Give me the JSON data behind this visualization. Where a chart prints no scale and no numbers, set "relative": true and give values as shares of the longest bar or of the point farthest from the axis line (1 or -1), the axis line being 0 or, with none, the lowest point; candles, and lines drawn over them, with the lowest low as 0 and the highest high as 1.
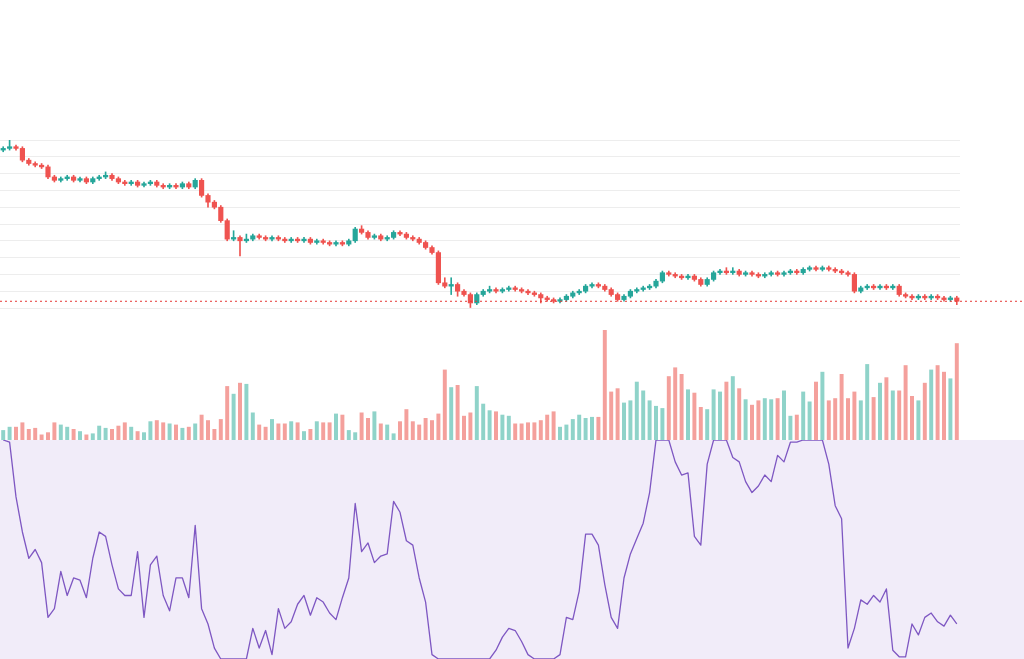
{
  "chart_data": [
    {
      "type": "candlestick",
      "relative": true,
      "grid": "y",
      "categories": [
        null,
        null,
        null,
        null,
        null,
        null,
        null,
        null,
        null,
        null,
        null,
        null,
        null,
        null,
        null,
        null,
        null,
        null,
        null,
        null,
        null,
        null,
        null,
        null,
        null,
        null,
        null,
        null,
        null,
        null,
        null,
        null,
        null,
        null,
        null,
        null,
        null,
        null,
        null,
        null,
        null,
        null,
        null,
        null,
        null,
        null,
        null,
        null,
        null,
        null,
        null,
        null,
        null,
        null,
        null,
        null,
        null,
        null,
        null,
        null,
        null,
        null,
        null,
        null,
        null,
        null,
        null,
        null,
        null,
        null,
        null,
        null,
        null,
        null,
        null,
        null,
        null,
        null,
        null,
        null,
        null,
        null,
        null,
        null,
        null,
        null,
        null,
        null,
        null,
        null,
        null,
        null,
        null,
        null,
        null,
        null,
        null,
        null,
        null,
        null,
        null,
        null,
        null,
        null,
        null,
        null,
        null,
        null,
        null,
        null,
        null,
        null,
        null,
        null,
        null,
        null,
        null,
        null,
        null,
        null,
        null,
        null,
        null,
        null,
        null,
        null,
        null,
        null,
        null,
        null,
        null,
        null,
        null,
        null,
        null,
        null,
        null,
        null,
        null,
        null,
        null,
        null,
        null,
        null,
        null,
        null,
        null,
        null,
        null,
        null
      ],
      "ohlc": [
        [
          0.94,
          0.96,
          0.93,
          0.95
        ],
        [
          0.95,
          1,
          0.94,
          0.96
        ],
        [
          0.96,
          0.97,
          0.94,
          0.95
        ],
        [
          0.95,
          0.96,
          0.87,
          0.88
        ],
        [
          0.88,
          0.89,
          0.85,
          0.86
        ],
        [
          0.86,
          0.87,
          0.84,
          0.85
        ],
        [
          0.85,
          0.86,
          0.83,
          0.84
        ],
        [
          0.84,
          0.85,
          0.77,
          0.78
        ],
        [
          0.78,
          0.79,
          0.75,
          0.76
        ],
        [
          0.76,
          0.78,
          0.75,
          0.77
        ],
        [
          0.77,
          0.79,
          0.76,
          0.78
        ],
        [
          0.78,
          0.79,
          0.75,
          0.76
        ],
        [
          0.76,
          0.78,
          0.75,
          0.77
        ],
        [
          0.77,
          0.78,
          0.74,
          0.75
        ],
        [
          0.75,
          0.78,
          0.74,
          0.77
        ],
        [
          0.77,
          0.79,
          0.76,
          0.78
        ],
        [
          0.78,
          0.81,
          0.77,
          0.79
        ],
        [
          0.79,
          0.8,
          0.76,
          0.77
        ],
        [
          0.77,
          0.78,
          0.74,
          0.75
        ],
        [
          0.75,
          0.76,
          0.73,
          0.74
        ],
        [
          0.74,
          0.76,
          0.73,
          0.75
        ],
        [
          0.75,
          0.76,
          0.72,
          0.73
        ],
        [
          0.73,
          0.75,
          0.72,
          0.74
        ],
        [
          0.74,
          0.76,
          0.73,
          0.75
        ],
        [
          0.75,
          0.76,
          0.72,
          0.73
        ],
        [
          0.73,
          0.74,
          0.71,
          0.72
        ],
        [
          0.72,
          0.74,
          0.71,
          0.73
        ],
        [
          0.73,
          0.74,
          0.71,
          0.72
        ],
        [
          0.72,
          0.75,
          0.71,
          0.74
        ],
        [
          0.74,
          0.75,
          0.71,
          0.72
        ],
        [
          0.72,
          0.77,
          0.71,
          0.76
        ],
        [
          0.76,
          0.77,
          0.66,
          0.67
        ],
        [
          0.67,
          0.68,
          0.6,
          0.63
        ],
        [
          0.63,
          0.64,
          0.59,
          0.6
        ],
        [
          0.6,
          0.61,
          0.51,
          0.52
        ],
        [
          0.52,
          0.53,
          0.4,
          0.41
        ],
        [
          0.41,
          0.46,
          0.4,
          0.42
        ],
        [
          0.42,
          0.43,
          0.31,
          0.4
        ],
        [
          0.4,
          0.44,
          0.39,
          0.41
        ],
        [
          0.41,
          0.44,
          0.4,
          0.43
        ],
        [
          0.43,
          0.44,
          0.41,
          0.42
        ],
        [
          0.42,
          0.43,
          0.4,
          0.41
        ],
        [
          0.41,
          0.43,
          0.4,
          0.42
        ],
        [
          0.42,
          0.43,
          0.4,
          0.41
        ],
        [
          0.41,
          0.42,
          0.39,
          0.4
        ],
        [
          0.4,
          0.42,
          0.39,
          0.41
        ],
        [
          0.41,
          0.42,
          0.39,
          0.4
        ],
        [
          0.4,
          0.42,
          0.39,
          0.41
        ],
        [
          0.41,
          0.42,
          0.38,
          0.39
        ],
        [
          0.39,
          0.41,
          0.38,
          0.4
        ],
        [
          0.4,
          0.41,
          0.38,
          0.39
        ],
        [
          0.39,
          0.4,
          0.37,
          0.38
        ],
        [
          0.38,
          0.4,
          0.37,
          0.39
        ],
        [
          0.39,
          0.4,
          0.37,
          0.38
        ],
        [
          0.38,
          0.41,
          0.37,
          0.4
        ],
        [
          0.4,
          0.48,
          0.39,
          0.47
        ],
        [
          0.47,
          0.49,
          0.44,
          0.45
        ],
        [
          0.45,
          0.46,
          0.41,
          0.42
        ],
        [
          0.42,
          0.44,
          0.41,
          0.43
        ],
        [
          0.43,
          0.44,
          0.4,
          0.41
        ],
        [
          0.41,
          0.43,
          0.4,
          0.42
        ],
        [
          0.42,
          0.46,
          0.41,
          0.45
        ],
        [
          0.45,
          0.46,
          0.43,
          0.44
        ],
        [
          0.44,
          0.45,
          0.41,
          0.42
        ],
        [
          0.42,
          0.43,
          0.4,
          0.41
        ],
        [
          0.41,
          0.42,
          0.38,
          0.39
        ],
        [
          0.39,
          0.4,
          0.35,
          0.36
        ],
        [
          0.36,
          0.37,
          0.32,
          0.33
        ],
        [
          0.33,
          0.34,
          0.14,
          0.15
        ],
        [
          0.15,
          0.18,
          0.12,
          0.13
        ],
        [
          0.13,
          0.18,
          0.08,
          0.14
        ],
        [
          0.14,
          0.15,
          0.07,
          0.1
        ],
        [
          0.1,
          0.11,
          0.07,
          0.08
        ],
        [
          0.08,
          0.09,
          0,
          0.03
        ],
        [
          0.03,
          0.09,
          0.02,
          0.08
        ],
        [
          0.08,
          0.11,
          0.07,
          0.1
        ],
        [
          0.1,
          0.13,
          0.09,
          0.11
        ],
        [
          0.11,
          0.12,
          0.09,
          0.1
        ],
        [
          0.1,
          0.12,
          0.09,
          0.11
        ],
        [
          0.11,
          0.13,
          0.1,
          0.12
        ],
        [
          0.12,
          0.13,
          0.1,
          0.11
        ],
        [
          0.11,
          0.12,
          0.09,
          0.1
        ],
        [
          0.1,
          0.11,
          0.08,
          0.09
        ],
        [
          0.09,
          0.1,
          0.07,
          0.08
        ],
        [
          0.08,
          0.09,
          0.03,
          0.06
        ],
        [
          0.06,
          0.07,
          0.04,
          0.05
        ],
        [
          0.05,
          0.06,
          0.03,
          0.04
        ],
        [
          0.04,
          0.06,
          0.03,
          0.05
        ],
        [
          0.05,
          0.08,
          0.04,
          0.07
        ],
        [
          0.07,
          0.1,
          0.06,
          0.09
        ],
        [
          0.09,
          0.11,
          0.08,
          0.1
        ],
        [
          0.1,
          0.14,
          0.09,
          0.13
        ],
        [
          0.13,
          0.15,
          0.12,
          0.14
        ],
        [
          0.14,
          0.15,
          0.12,
          0.13
        ],
        [
          0.13,
          0.14,
          0.1,
          0.11
        ],
        [
          0.11,
          0.12,
          0.07,
          0.08
        ],
        [
          0.08,
          0.09,
          0.04,
          0.05
        ],
        [
          0.05,
          0.08,
          0.04,
          0.07
        ],
        [
          0.07,
          0.11,
          0.06,
          0.1
        ],
        [
          0.1,
          0.12,
          0.09,
          0.11
        ],
        [
          0.11,
          0.13,
          0.1,
          0.12
        ],
        [
          0.12,
          0.14,
          0.11,
          0.13
        ],
        [
          0.13,
          0.17,
          0.12,
          0.16
        ],
        [
          0.16,
          0.22,
          0.15,
          0.21
        ],
        [
          0.21,
          0.22,
          0.19,
          0.2
        ],
        [
          0.2,
          0.21,
          0.18,
          0.19
        ],
        [
          0.19,
          0.2,
          0.17,
          0.18
        ],
        [
          0.18,
          0.2,
          0.17,
          0.19
        ],
        [
          0.19,
          0.2,
          0.16,
          0.17
        ],
        [
          0.17,
          0.18,
          0.13,
          0.14
        ],
        [
          0.14,
          0.18,
          0.13,
          0.17
        ],
        [
          0.17,
          0.22,
          0.16,
          0.21
        ],
        [
          0.21,
          0.23,
          0.2,
          0.22
        ],
        [
          0.22,
          0.24,
          0.2,
          0.21
        ],
        [
          0.21,
          0.24,
          0.2,
          0.22
        ],
        [
          0.22,
          0.23,
          0.19,
          0.2
        ],
        [
          0.2,
          0.22,
          0.19,
          0.21
        ],
        [
          0.21,
          0.22,
          0.19,
          0.2
        ],
        [
          0.2,
          0.21,
          0.18,
          0.19
        ],
        [
          0.19,
          0.21,
          0.18,
          0.2
        ],
        [
          0.2,
          0.22,
          0.19,
          0.21
        ],
        [
          0.21,
          0.22,
          0.19,
          0.2
        ],
        [
          0.2,
          0.22,
          0.19,
          0.21
        ],
        [
          0.21,
          0.23,
          0.2,
          0.22
        ],
        [
          0.22,
          0.23,
          0.2,
          0.21
        ],
        [
          0.21,
          0.24,
          0.2,
          0.23
        ],
        [
          0.23,
          0.25,
          0.22,
          0.24
        ],
        [
          0.24,
          0.25,
          0.22,
          0.23
        ],
        [
          0.23,
          0.25,
          0.22,
          0.24
        ],
        [
          0.24,
          0.25,
          0.22,
          0.23
        ],
        [
          0.23,
          0.24,
          0.21,
          0.22
        ],
        [
          0.22,
          0.23,
          0.2,
          0.21
        ],
        [
          0.21,
          0.22,
          0.19,
          0.2
        ],
        [
          0.2,
          0.21,
          0.09,
          0.1
        ],
        [
          0.1,
          0.13,
          0.09,
          0.12
        ],
        [
          0.12,
          0.14,
          0.11,
          0.13
        ],
        [
          0.13,
          0.14,
          0.11,
          0.12
        ],
        [
          0.12,
          0.14,
          0.11,
          0.13
        ],
        [
          0.13,
          0.14,
          0.11,
          0.12
        ],
        [
          0.12,
          0.14,
          0.11,
          0.13
        ],
        [
          0.13,
          0.14,
          0.07,
          0.08
        ],
        [
          0.08,
          0.09,
          0.06,
          0.07
        ],
        [
          0.07,
          0.08,
          0.05,
          0.06
        ],
        [
          0.06,
          0.08,
          0.05,
          0.07
        ],
        [
          0.07,
          0.08,
          0.05,
          0.06
        ],
        [
          0.06,
          0.08,
          0.05,
          0.07
        ],
        [
          0.07,
          0.08,
          0.05,
          0.06
        ],
        [
          0.06,
          0.07,
          0.04,
          0.05
        ],
        [
          0.05,
          0.07,
          0.04,
          0.06
        ],
        [
          0.06,
          0.07,
          0.02,
          0.04
        ]
      ],
      "ref_lines": [
        {
          "axis": "y",
          "value": 0.04,
          "color": "#e53935",
          "line_style": "dotted"
        }
      ]
    },
    {
      "type": "bar",
      "relative": true,
      "categories": [
        null,
        null,
        null,
        null,
        null,
        null,
        null,
        null,
        null,
        null,
        null,
        null,
        null,
        null,
        null,
        null,
        null,
        null,
        null,
        null,
        null,
        null,
        null,
        null,
        null,
        null,
        null,
        null,
        null,
        null,
        null,
        null,
        null,
        null,
        null,
        null,
        null,
        null,
        null,
        null,
        null,
        null,
        null,
        null,
        null,
        null,
        null,
        null,
        null,
        null,
        null,
        null,
        null,
        null,
        null,
        null,
        null,
        null,
        null,
        null,
        null,
        null,
        null,
        null,
        null,
        null,
        null,
        null,
        null,
        null,
        null,
        null,
        null,
        null,
        null,
        null,
        null,
        null,
        null,
        null,
        null,
        null,
        null,
        null,
        null,
        null,
        null,
        null,
        null,
        null,
        null,
        null,
        null,
        null,
        null,
        null,
        null,
        null,
        null,
        null,
        null,
        null,
        null,
        null,
        null,
        null,
        null,
        null,
        null,
        null,
        null,
        null,
        null,
        null,
        null,
        null,
        null,
        null,
        null,
        null,
        null,
        null,
        null,
        null,
        null,
        null,
        null,
        null,
        null,
        null,
        null,
        null,
        null,
        null,
        null,
        null,
        null,
        null,
        null,
        null,
        null,
        null,
        null,
        null,
        null,
        null,
        null,
        null,
        null,
        null
      ],
      "values": [
        0.09,
        0.12,
        0.12,
        0.16,
        0.1,
        0.11,
        0.05,
        0.07,
        0.16,
        0.14,
        0.12,
        0.1,
        0.08,
        0.05,
        0.06,
        0.13,
        0.11,
        0.1,
        0.13,
        0.16,
        0.12,
        0.08,
        0.07,
        0.17,
        0.18,
        0.16,
        0.15,
        0.14,
        0.11,
        0.12,
        0.15,
        0.23,
        0.18,
        0.1,
        0.19,
        0.49,
        0.42,
        0.52,
        0.51,
        0.25,
        0.14,
        0.12,
        0.19,
        0.15,
        0.15,
        0.17,
        0.16,
        0.08,
        0.1,
        0.17,
        0.16,
        0.16,
        0.24,
        0.23,
        0.09,
        0.07,
        0.25,
        0.2,
        0.26,
        0.15,
        0.14,
        0.06,
        0.17,
        0.28,
        0.17,
        0.14,
        0.2,
        0.18,
        0.24,
        0.64,
        0.48,
        0.5,
        0.22,
        0.25,
        0.49,
        0.33,
        0.27,
        0.26,
        0.23,
        0.22,
        0.15,
        0.15,
        0.16,
        0.16,
        0.18,
        0.23,
        0.26,
        0.12,
        0.14,
        0.19,
        0.23,
        0.2,
        0.21,
        0.21,
        1,
        0.44,
        0.47,
        0.34,
        0.36,
        0.53,
        0.45,
        0.36,
        0.31,
        0.29,
        0.58,
        0.66,
        0.6,
        0.46,
        0.43,
        0.3,
        0.28,
        0.46,
        0.44,
        0.53,
        0.58,
        0.47,
        0.37,
        0.32,
        0.36,
        0.38,
        0.37,
        0.38,
        0.45,
        0.22,
        0.23,
        0.44,
        0.35,
        0.53,
        0.62,
        0.36,
        0.38,
        0.6,
        0.38,
        0.44,
        0.36,
        0.69,
        0.39,
        0.52,
        0.57,
        0.45,
        0.45,
        0.68,
        0.4,
        0.36,
        0.52,
        0.64,
        0.68,
        0.62,
        0.56,
        0.88
      ],
      "colors": [
        "#8fd3c9",
        "#8fd3c9",
        "#f4a09c",
        "#f4a09c",
        "#f4a09c",
        "#f4a09c",
        "#f4a09c",
        "#f4a09c",
        "#f4a09c",
        "#8fd3c9",
        "#8fd3c9",
        "#f4a09c",
        "#8fd3c9",
        "#f4a09c",
        "#8fd3c9",
        "#8fd3c9",
        "#8fd3c9",
        "#f4a09c",
        "#f4a09c",
        "#f4a09c",
        "#8fd3c9",
        "#f4a09c",
        "#8fd3c9",
        "#8fd3c9",
        "#f4a09c",
        "#f4a09c",
        "#8fd3c9",
        "#f4a09c",
        "#8fd3c9",
        "#f4a09c",
        "#8fd3c9",
        "#f4a09c",
        "#f4a09c",
        "#f4a09c",
        "#f4a09c",
        "#f4a09c",
        "#8fd3c9",
        "#f4a09c",
        "#8fd3c9",
        "#8fd3c9",
        "#f4a09c",
        "#f4a09c",
        "#8fd3c9",
        "#f4a09c",
        "#f4a09c",
        "#8fd3c9",
        "#f4a09c",
        "#8fd3c9",
        "#f4a09c",
        "#8fd3c9",
        "#f4a09c",
        "#f4a09c",
        "#8fd3c9",
        "#f4a09c",
        "#8fd3c9",
        "#8fd3c9",
        "#f4a09c",
        "#f4a09c",
        "#8fd3c9",
        "#f4a09c",
        "#8fd3c9",
        "#8fd3c9",
        "#f4a09c",
        "#f4a09c",
        "#f4a09c",
        "#f4a09c",
        "#f4a09c",
        "#f4a09c",
        "#f4a09c",
        "#f4a09c",
        "#8fd3c9",
        "#f4a09c",
        "#f4a09c",
        "#f4a09c",
        "#8fd3c9",
        "#8fd3c9",
        "#8fd3c9",
        "#f4a09c",
        "#8fd3c9",
        "#8fd3c9",
        "#f4a09c",
        "#f4a09c",
        "#f4a09c",
        "#f4a09c",
        "#f4a09c",
        "#f4a09c",
        "#f4a09c",
        "#8fd3c9",
        "#8fd3c9",
        "#8fd3c9",
        "#8fd3c9",
        "#8fd3c9",
        "#8fd3c9",
        "#f4a09c",
        "#f4a09c",
        "#f4a09c",
        "#f4a09c",
        "#8fd3c9",
        "#8fd3c9",
        "#8fd3c9",
        "#8fd3c9",
        "#8fd3c9",
        "#8fd3c9",
        "#8fd3c9",
        "#f4a09c",
        "#f4a09c",
        "#f4a09c",
        "#8fd3c9",
        "#f4a09c",
        "#f4a09c",
        "#8fd3c9",
        "#8fd3c9",
        "#8fd3c9",
        "#f4a09c",
        "#8fd3c9",
        "#f4a09c",
        "#8fd3c9",
        "#f4a09c",
        "#f4a09c",
        "#8fd3c9",
        "#8fd3c9",
        "#f4a09c",
        "#8fd3c9",
        "#8fd3c9",
        "#f4a09c",
        "#8fd3c9",
        "#8fd3c9",
        "#f4a09c",
        "#8fd3c9",
        "#f4a09c",
        "#f4a09c",
        "#f4a09c",
        "#f4a09c",
        "#f4a09c",
        "#8fd3c9",
        "#8fd3c9",
        "#f4a09c",
        "#8fd3c9",
        "#f4a09c",
        "#8fd3c9",
        "#f4a09c",
        "#f4a09c",
        "#f4a09c",
        "#8fd3c9",
        "#f4a09c",
        "#8fd3c9",
        "#f4a09c",
        "#f4a09c",
        "#8fd3c9",
        "#f4a09c"
      ]
    },
    {
      "type": "line",
      "relative": true,
      "color": "#7e57c2",
      "categories": [
        null,
        null,
        null,
        null,
        null,
        null,
        null,
        null,
        null,
        null,
        null,
        null,
        null,
        null,
        null,
        null,
        null,
        null,
        null,
        null,
        null,
        null,
        null,
        null,
        null,
        null,
        null,
        null,
        null,
        null,
        null,
        null,
        null,
        null,
        null,
        null,
        null,
        null,
        null,
        null,
        null,
        null,
        null,
        null,
        null,
        null,
        null,
        null,
        null,
        null,
        null,
        null,
        null,
        null,
        null,
        null,
        null,
        null,
        null,
        null,
        null,
        null,
        null,
        null,
        null,
        null,
        null,
        null,
        null,
        null,
        null,
        null,
        null,
        null,
        null,
        null,
        null,
        null,
        null,
        null,
        null,
        null,
        null,
        null,
        null,
        null,
        null,
        null,
        null,
        null,
        null,
        null,
        null,
        null,
        null,
        null,
        null,
        null,
        null,
        null,
        null,
        null,
        null,
        null,
        null,
        null,
        null,
        null,
        null,
        null,
        null,
        null,
        null,
        null,
        null,
        null,
        null,
        null,
        null,
        null,
        null,
        null,
        null,
        null,
        null,
        null,
        null,
        null,
        null,
        null,
        null,
        null,
        null,
        null,
        null,
        null,
        null,
        null,
        null,
        null,
        null,
        null,
        null,
        null,
        null,
        null,
        null,
        null,
        null,
        null
      ],
      "values": [
        1,
        0.99,
        0.74,
        0.58,
        0.46,
        0.5,
        0.44,
        0.19,
        0.23,
        0.4,
        0.29,
        0.37,
        0.36,
        0.28,
        0.46,
        0.58,
        0.56,
        0.43,
        0.32,
        0.29,
        0.29,
        0.49,
        0.19,
        0.43,
        0.47,
        0.29,
        0.22,
        0.37,
        0.37,
        0.28,
        0.61,
        0.23,
        0.16,
        0.05,
        0,
        0,
        0,
        0,
        0,
        0.14,
        0.05,
        0.13,
        0.02,
        0.23,
        0.14,
        0.17,
        0.25,
        0.29,
        0.2,
        0.28,
        0.26,
        0.21,
        0.18,
        0.28,
        0.37,
        0.71,
        0.49,
        0.53,
        0.44,
        0.47,
        0.48,
        0.72,
        0.67,
        0.54,
        0.52,
        0.37,
        0.26,
        0.02,
        0,
        0,
        0,
        0,
        0,
        0,
        0,
        0,
        0,
        0.04,
        0.1,
        0.14,
        0.13,
        0.08,
        0.02,
        0,
        0,
        0,
        0,
        0.02,
        0.19,
        0.18,
        0.31,
        0.57,
        0.57,
        0.52,
        0.34,
        0.19,
        0.14,
        0.37,
        0.48,
        0.55,
        0.62,
        0.76,
        1,
        1,
        1,
        0.9,
        0.84,
        0.85,
        0.56,
        0.52,
        0.89,
        1,
        1,
        1,
        0.92,
        0.9,
        0.81,
        0.76,
        0.79,
        0.84,
        0.81,
        0.93,
        0.9,
        0.99,
        0.99,
        1,
        1,
        1,
        1,
        0.89,
        0.7,
        0.64,
        0.05,
        0.14,
        0.27,
        0.25,
        0.29,
        0.26,
        0.32,
        0.04,
        0.01,
        0.01,
        0.16,
        0.11,
        0.19,
        0.21,
        0.17,
        0.15,
        0.2,
        0.16
      ],
      "bands": [
        {
          "axis": "y",
          "from": 0,
          "to": 1,
          "color": "#f1ecf9"
        }
      ]
    }
  ]
}
